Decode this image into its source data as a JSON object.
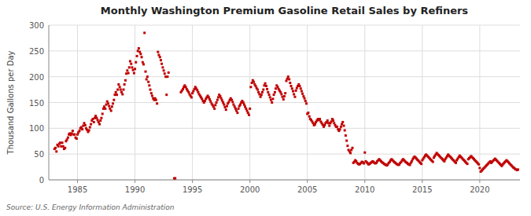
{
  "chart_data": {
    "type": "scatter",
    "title": "Monthly Washington Premium Gasoline Retail Sales by Refiners",
    "y_label": "Thousand Gallons per Day",
    "source": "Source: U.S. Energy Information Administration",
    "color": "#c00000",
    "marker": "square",
    "grid": true,
    "xlim": [
      1982.5,
      2023.5
    ],
    "ylim": [
      0,
      300
    ],
    "xticks": [
      1985,
      1990,
      1995,
      2000,
      2005,
      2010,
      2015,
      2020
    ],
    "yticks": [
      0,
      50,
      100,
      150,
      200,
      250,
      300
    ],
    "x": [
      1983.0,
      1983.08,
      1983.17,
      1983.25,
      1983.33,
      1983.42,
      1983.5,
      1983.58,
      1983.67,
      1983.75,
      1983.83,
      1983.92,
      1984.0,
      1984.08,
      1984.17,
      1984.25,
      1984.33,
      1984.42,
      1984.5,
      1984.58,
      1984.67,
      1984.75,
      1984.83,
      1984.92,
      1985.0,
      1985.08,
      1985.17,
      1985.25,
      1985.33,
      1985.42,
      1985.5,
      1985.58,
      1985.67,
      1985.75,
      1985.83,
      1985.92,
      1986.0,
      1986.08,
      1986.17,
      1986.25,
      1986.33,
      1986.42,
      1986.5,
      1986.58,
      1986.67,
      1986.75,
      1986.83,
      1986.92,
      1987.0,
      1987.08,
      1987.17,
      1987.25,
      1987.33,
      1987.42,
      1987.5,
      1987.58,
      1987.67,
      1987.75,
      1987.83,
      1987.92,
      1988.0,
      1988.08,
      1988.17,
      1988.25,
      1988.33,
      1988.42,
      1988.5,
      1988.58,
      1988.67,
      1988.75,
      1988.83,
      1988.92,
      1989.0,
      1989.08,
      1989.17,
      1989.25,
      1989.33,
      1989.42,
      1989.5,
      1989.58,
      1989.67,
      1989.75,
      1989.83,
      1989.92,
      1990.0,
      1990.08,
      1990.17,
      1990.25,
      1990.33,
      1990.42,
      1990.5,
      1990.58,
      1990.67,
      1990.75,
      1990.83,
      1990.92,
      1991.0,
      1991.08,
      1991.17,
      1991.25,
      1991.33,
      1991.42,
      1991.5,
      1991.58,
      1991.67,
      1991.75,
      1991.83,
      1991.92,
      1992.0,
      1992.08,
      1992.17,
      1992.25,
      1992.33,
      1992.42,
      1992.5,
      1992.58,
      1992.67,
      1992.75,
      1992.83,
      1992.92,
      1993.42,
      1993.5,
      1994.0,
      1994.08,
      1994.17,
      1994.25,
      1994.33,
      1994.42,
      1994.5,
      1994.58,
      1994.67,
      1994.75,
      1994.83,
      1994.92,
      1995.0,
      1995.08,
      1995.17,
      1995.25,
      1995.33,
      1995.42,
      1995.5,
      1995.58,
      1995.67,
      1995.75,
      1995.83,
      1995.92,
      1996.0,
      1996.08,
      1996.17,
      1996.25,
      1996.33,
      1996.42,
      1996.5,
      1996.58,
      1996.67,
      1996.75,
      1996.83,
      1996.92,
      1997.0,
      1997.08,
      1997.17,
      1997.25,
      1997.33,
      1997.42,
      1997.5,
      1997.58,
      1997.67,
      1997.75,
      1997.83,
      1997.92,
      1998.0,
      1998.08,
      1998.17,
      1998.25,
      1998.33,
      1998.42,
      1998.5,
      1998.58,
      1998.67,
      1998.75,
      1998.83,
      1998.92,
      1999.0,
      1999.08,
      1999.17,
      1999.25,
      1999.33,
      1999.42,
      1999.5,
      1999.58,
      1999.67,
      1999.75,
      1999.83,
      1999.92,
      2000.0,
      2000.08,
      2000.17,
      2000.25,
      2000.33,
      2000.42,
      2000.5,
      2000.58,
      2000.67,
      2000.75,
      2000.83,
      2000.92,
      2001.0,
      2001.08,
      2001.17,
      2001.25,
      2001.33,
      2001.42,
      2001.5,
      2001.58,
      2001.67,
      2001.75,
      2001.83,
      2001.92,
      2002.0,
      2002.08,
      2002.17,
      2002.25,
      2002.33,
      2002.42,
      2002.5,
      2002.58,
      2002.67,
      2002.75,
      2002.83,
      2002.92,
      2003.0,
      2003.08,
      2003.17,
      2003.25,
      2003.33,
      2003.42,
      2003.5,
      2003.58,
      2003.67,
      2003.75,
      2003.83,
      2003.92,
      2004.0,
      2004.08,
      2004.17,
      2004.25,
      2004.33,
      2004.42,
      2004.5,
      2004.58,
      2004.67,
      2004.75,
      2004.83,
      2004.92,
      2005.0,
      2005.08,
      2005.17,
      2005.25,
      2005.33,
      2005.42,
      2005.5,
      2005.58,
      2005.67,
      2005.75,
      2005.83,
      2005.92,
      2006.0,
      2006.08,
      2006.17,
      2006.25,
      2006.33,
      2006.42,
      2006.5,
      2006.58,
      2006.67,
      2006.75,
      2006.83,
      2006.92,
      2007.0,
      2007.08,
      2007.17,
      2007.25,
      2007.33,
      2007.42,
      2007.5,
      2007.58,
      2007.67,
      2007.75,
      2007.83,
      2007.92,
      2008.0,
      2008.08,
      2008.17,
      2008.25,
      2008.33,
      2008.42,
      2008.5,
      2008.58,
      2008.67,
      2008.75,
      2008.83,
      2008.92,
      2009.0,
      2009.08,
      2009.17,
      2009.25,
      2009.33,
      2009.42,
      2009.5,
      2009.58,
      2009.67,
      2009.75,
      2009.83,
      2009.92,
      2010.0,
      2010.08,
      2010.17,
      2010.25,
      2010.33,
      2010.42,
      2010.5,
      2010.58,
      2010.67,
      2010.75,
      2010.83,
      2010.92,
      2011.0,
      2011.08,
      2011.17,
      2011.25,
      2011.33,
      2011.42,
      2011.5,
      2011.58,
      2011.67,
      2011.75,
      2011.83,
      2011.92,
      2012.0,
      2012.08,
      2012.17,
      2012.25,
      2012.33,
      2012.42,
      2012.5,
      2012.58,
      2012.67,
      2012.75,
      2012.83,
      2012.92,
      2013.0,
      2013.08,
      2013.17,
      2013.25,
      2013.33,
      2013.42,
      2013.5,
      2013.58,
      2013.67,
      2013.75,
      2013.83,
      2013.92,
      2014.0,
      2014.08,
      2014.17,
      2014.25,
      2014.33,
      2014.42,
      2014.5,
      2014.58,
      2014.67,
      2014.75,
      2014.83,
      2014.92,
      2015.0,
      2015.08,
      2015.17,
      2015.25,
      2015.33,
      2015.42,
      2015.5,
      2015.58,
      2015.67,
      2015.75,
      2015.83,
      2015.92,
      2016.0,
      2016.08,
      2016.17,
      2016.25,
      2016.33,
      2016.42,
      2016.5,
      2016.58,
      2016.67,
      2016.75,
      2016.83,
      2016.92,
      2017.0,
      2017.08,
      2017.17,
      2017.25,
      2017.33,
      2017.42,
      2017.5,
      2017.58,
      2017.67,
      2017.75,
      2017.83,
      2017.92,
      2018.0,
      2018.08,
      2018.17,
      2018.25,
      2018.33,
      2018.42,
      2018.5,
      2018.58,
      2018.67,
      2018.75,
      2018.83,
      2018.92,
      2019.0,
      2019.08,
      2019.17,
      2019.25,
      2019.33,
      2019.42,
      2019.5,
      2019.58,
      2019.67,
      2019.75,
      2019.83,
      2019.92,
      2020.0,
      2020.08,
      2020.17,
      2020.25,
      2020.33,
      2020.42,
      2020.5,
      2020.58,
      2020.67,
      2020.75,
      2020.83,
      2020.92,
      2021.0,
      2021.08,
      2021.17,
      2021.25,
      2021.33,
      2021.42,
      2021.5,
      2021.58,
      2021.67,
      2021.75,
      2021.83,
      2021.92,
      2022.0,
      2022.08,
      2022.17,
      2022.25,
      2022.33,
      2022.42,
      2022.5,
      2022.58,
      2022.67,
      2022.75,
      2022.83,
      2022.92,
      2023.0,
      2023.08,
      2023.17,
      2023.25,
      2023.33
    ],
    "values": [
      60,
      62,
      55,
      68,
      65,
      70,
      72,
      65,
      72,
      65,
      60,
      62,
      75,
      78,
      82,
      88,
      90,
      87,
      90,
      95,
      88,
      88,
      82,
      80,
      88,
      92,
      95,
      100,
      102,
      98,
      105,
      110,
      106,
      100,
      97,
      93,
      96,
      102,
      108,
      115,
      118,
      112,
      120,
      124,
      120,
      116,
      112,
      108,
      115,
      120,
      128,
      138,
      142,
      138,
      146,
      152,
      148,
      143,
      138,
      134,
      142,
      148,
      155,
      165,
      170,
      165,
      175,
      185,
      180,
      175,
      170,
      166,
      175,
      185,
      193,
      206,
      212,
      207,
      218,
      230,
      225,
      218,
      213,
      207,
      215,
      228,
      240,
      250,
      255,
      248,
      244,
      238,
      228,
      224,
      285,
      210,
      195,
      200,
      190,
      183,
      175,
      168,
      163,
      158,
      155,
      158,
      155,
      148,
      248,
      242,
      238,
      232,
      225,
      218,
      212,
      206,
      200,
      165,
      200,
      208,
      3,
      3,
      170,
      173,
      176,
      180,
      183,
      180,
      176,
      173,
      170,
      166,
      163,
      160,
      168,
      172,
      176,
      180,
      177,
      174,
      170,
      166,
      163,
      160,
      157,
      153,
      150,
      153,
      157,
      160,
      163,
      160,
      156,
      152,
      148,
      145,
      142,
      138,
      145,
      150,
      155,
      160,
      165,
      162,
      158,
      154,
      150,
      146,
      141,
      136,
      143,
      148,
      151,
      155,
      158,
      155,
      151,
      146,
      142,
      138,
      134,
      130,
      138,
      143,
      146,
      150,
      153,
      150,
      146,
      142,
      138,
      134,
      130,
      126,
      138,
      180,
      188,
      193,
      190,
      185,
      182,
      178,
      175,
      170,
      166,
      161,
      165,
      170,
      175,
      183,
      187,
      182,
      176,
      170,
      165,
      160,
      155,
      150,
      157,
      165,
      170,
      177,
      183,
      180,
      176,
      173,
      170,
      166,
      161,
      156,
      162,
      168,
      192,
      196,
      200,
      195,
      188,
      182,
      177,
      172,
      166,
      161,
      173,
      178,
      182,
      185,
      182,
      177,
      172,
      167,
      162,
      158,
      153,
      148,
      128,
      130,
      123,
      118,
      116,
      113,
      110,
      106,
      108,
      112,
      115,
      118,
      116,
      118,
      113,
      110,
      107,
      103,
      106,
      110,
      112,
      115,
      110,
      105,
      110,
      113,
      118,
      115,
      110,
      106,
      103,
      103,
      98,
      95,
      98,
      103,
      108,
      112,
      105,
      96,
      86,
      76,
      66,
      58,
      55,
      52,
      58,
      62,
      33,
      35,
      38,
      36,
      33,
      31,
      30,
      31,
      33,
      35,
      34,
      32,
      53,
      36,
      34,
      32,
      30,
      31,
      33,
      34,
      36,
      35,
      33,
      32,
      33,
      36,
      38,
      40,
      38,
      36,
      34,
      33,
      31,
      30,
      29,
      28,
      30,
      33,
      35,
      38,
      40,
      38,
      36,
      34,
      33,
      31,
      30,
      29,
      30,
      33,
      35,
      38,
      40,
      38,
      36,
      34,
      33,
      31,
      30,
      29,
      33,
      36,
      40,
      43,
      45,
      43,
      41,
      39,
      37,
      35,
      33,
      31,
      38,
      41,
      44,
      47,
      49,
      47,
      45,
      43,
      41,
      39,
      37,
      35,
      43,
      46,
      49,
      52,
      50,
      48,
      46,
      44,
      42,
      40,
      38,
      36,
      40,
      43,
      46,
      49,
      47,
      45,
      43,
      41,
      39,
      37,
      35,
      33,
      38,
      41,
      44,
      47,
      45,
      43,
      41,
      39,
      37,
      35,
      33,
      31,
      40,
      42,
      44,
      46,
      44,
      42,
      40,
      38,
      36,
      34,
      32,
      30,
      23,
      16,
      18,
      20,
      22,
      24,
      26,
      28,
      30,
      32,
      34,
      36,
      33,
      35,
      37,
      39,
      41,
      39,
      37,
      35,
      33,
      31,
      29,
      27,
      30,
      32,
      34,
      36,
      38,
      36,
      34,
      32,
      30,
      28,
      26,
      24,
      23,
      21,
      20,
      19,
      20
    ]
  }
}
